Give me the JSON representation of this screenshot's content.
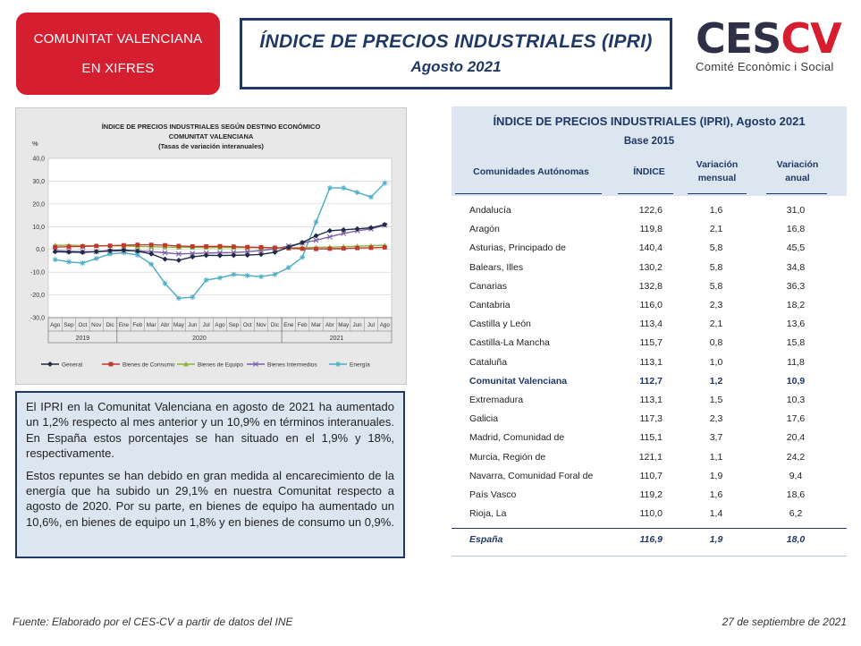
{
  "header": {
    "badge_line1": "COMUNITAT VALENCIANA",
    "badge_line2": "EN XIFRES",
    "title": "ÍNDICE DE PRECIOS INDUSTRIALES (IPRI)",
    "subtitle": "Agosto 2021",
    "logo_text_dark": "CES",
    "logo_text_red": "CV",
    "logo_subtitle": "Comité Econòmic i Social"
  },
  "chart_data": {
    "type": "line",
    "title": "ÍNDICE DE PRECIOS INDUSTRIALES SEGÚN DESTINO ECONÓMICO",
    "subtitle": "COMUNITAT VALENCIANA",
    "subtitle2": "(Tasas de variación interanuales)",
    "ylabel": "%",
    "ylim": [
      -30,
      40
    ],
    "yticks": [
      "40,0",
      "30,0",
      "20,0",
      "10,0",
      "0,0",
      "-10,0",
      "-20,0",
      "-30,0"
    ],
    "grid": true,
    "legend_position": "bottom",
    "categories": [
      "Ago",
      "Sep",
      "Oct",
      "Nov",
      "Dic",
      "Ene",
      "Feb",
      "Mar",
      "Abr",
      "May",
      "Jun",
      "Jul",
      "Ago",
      "Sep",
      "Oct",
      "Nov",
      "Dic",
      "Ene",
      "Feb",
      "Mar",
      "Abr",
      "May",
      "Jun",
      "Jul",
      "Ago"
    ],
    "year_groups": [
      {
        "label": "2019",
        "count": 5
      },
      {
        "label": "2020",
        "count": 12
      },
      {
        "label": "2021",
        "count": 8
      }
    ],
    "series": [
      {
        "name": "General",
        "color": "#1f2a44",
        "marker": "diamond",
        "values": [
          -1.0,
          -1.2,
          -1.3,
          -1.0,
          -0.5,
          -0.3,
          -0.8,
          -2.0,
          -4.3,
          -4.8,
          -3.3,
          -2.6,
          -2.7,
          -2.6,
          -2.5,
          -2.2,
          -1.3,
          1.0,
          3.0,
          6.0,
          8.2,
          8.6,
          9.0,
          9.5,
          10.9
        ]
      },
      {
        "name": "Bienes de Consumo",
        "color": "#c0392b",
        "marker": "square",
        "values": [
          1.0,
          1.2,
          1.3,
          1.5,
          1.6,
          1.8,
          2.0,
          2.0,
          1.8,
          1.5,
          1.3,
          1.3,
          1.4,
          1.2,
          1.0,
          0.9,
          0.7,
          0.5,
          0.3,
          0.2,
          0.3,
          0.4,
          0.6,
          0.7,
          0.9
        ]
      },
      {
        "name": "Bienes de Equipo",
        "color": "#8db33a",
        "marker": "triangle",
        "values": [
          1.8,
          1.8,
          1.7,
          1.6,
          1.6,
          1.5,
          1.3,
          1.2,
          1.0,
          0.9,
          0.9,
          0.8,
          0.8,
          0.8,
          0.8,
          0.7,
          0.7,
          0.7,
          0.8,
          0.9,
          1.0,
          1.2,
          1.4,
          1.6,
          1.8
        ]
      },
      {
        "name": "Bienes Intermedios",
        "color": "#7b5ea7",
        "marker": "x",
        "values": [
          -0.5,
          -0.8,
          -1.0,
          -1.0,
          -0.8,
          -0.5,
          -0.6,
          -1.0,
          -1.5,
          -2.0,
          -1.8,
          -1.6,
          -1.5,
          -1.4,
          -1.0,
          -0.5,
          0.3,
          1.5,
          2.8,
          4.0,
          5.5,
          7.0,
          8.2,
          9.0,
          10.6
        ]
      },
      {
        "name": "Energía",
        "color": "#4bacc6",
        "marker": "star",
        "values": [
          -4.5,
          -5.5,
          -6.0,
          -4.0,
          -2.0,
          -1.5,
          -2.5,
          -6.5,
          -15.0,
          -21.5,
          -21.0,
          -13.5,
          -12.5,
          -11.0,
          -11.5,
          -12.0,
          -11.0,
          -8.0,
          -3.5,
          12.0,
          27.0,
          27.0,
          25.0,
          23.0,
          29.1
        ]
      }
    ]
  },
  "text": {
    "paragraph1": "El IPRI en la Comunitat Valenciana en agosto de 2021 ha aumentado un 1,2% respecto al mes anterior y un 10,9% en términos interanuales. En España estos porcentajes se han situado en el 1,9% y 18%, respectivamente.",
    "paragraph2": "Estos repuntes se han debido en gran medida al encarecimiento de la energía que ha subido un 29,1% en nuestra Comunitat respecto a agosto de 2020. Por su parte, en bienes de equipo ha aumentado un 10,6%, en bienes de equipo un 1,8% y en bienes de consumo un 0,9%."
  },
  "table": {
    "title": "ÍNDICE DE PRECIOS INDUSTRIALES (IPRI), Agosto 2021",
    "base": "Base 2015",
    "col_region": "Comunidades Autónomas",
    "col_index": "ÍNDICE",
    "col_monthly_1": "Variación",
    "col_monthly_2": "mensual",
    "col_annual_1": "Variación",
    "col_annual_2": "anual",
    "rows": [
      {
        "name": "Andalucía",
        "index": "122,6",
        "monthly": "1,6",
        "annual": "31,0"
      },
      {
        "name": "Aragón",
        "index": "119,8",
        "monthly": "2,1",
        "annual": "16,8"
      },
      {
        "name": "Asturias, Principado de",
        "index": "140,4",
        "monthly": "5,8",
        "annual": "45,5"
      },
      {
        "name": "Balears, Illes",
        "index": "130,2",
        "monthly": "5,8",
        "annual": "34,8"
      },
      {
        "name": "Canarias",
        "index": "132,8",
        "monthly": "5,8",
        "annual": "36,3"
      },
      {
        "name": "Cantabria",
        "index": "116,0",
        "monthly": "2,3",
        "annual": "18,2"
      },
      {
        "name": "Castilla y León",
        "index": "113,4",
        "monthly": "2,1",
        "annual": "13,6"
      },
      {
        "name": "Castilla-La Mancha",
        "index": "115,7",
        "monthly": "0,8",
        "annual": "15,8"
      },
      {
        "name": "Cataluña",
        "index": "113,1",
        "monthly": "1,0",
        "annual": "11,8"
      },
      {
        "name": "Comunitat Valenciana",
        "index": "112,7",
        "monthly": "1,2",
        "annual": "10,9",
        "highlight": true
      },
      {
        "name": "Extremadura",
        "index": "113,1",
        "monthly": "1,5",
        "annual": "10,3"
      },
      {
        "name": "Galicia",
        "index": "117,3",
        "monthly": "2,3",
        "annual": "17,6"
      },
      {
        "name": "Madrid, Comunidad de",
        "index": "115,1",
        "monthly": "3,7",
        "annual": "20,4"
      },
      {
        "name": "Murcia, Región de",
        "index": "121,1",
        "monthly": "1,1",
        "annual": "24,2"
      },
      {
        "name": "Navarra, Comunidad Foral de",
        "index": "110,7",
        "monthly": "1,9",
        "annual": "9,4"
      },
      {
        "name": "País Vasco",
        "index": "119,2",
        "monthly": "1,6",
        "annual": "18,6"
      },
      {
        "name": "Rioja, La",
        "index": "110,0",
        "monthly": "1,4",
        "annual": "6,2"
      }
    ],
    "total": {
      "name": "España",
      "index": "116,9",
      "monthly": "1,9",
      "annual": "18,0"
    }
  },
  "footer": {
    "source": "Fuente: Elaborado por el CES-CV a partir de datos del INE",
    "date": "27 de septiembre de 2021"
  }
}
